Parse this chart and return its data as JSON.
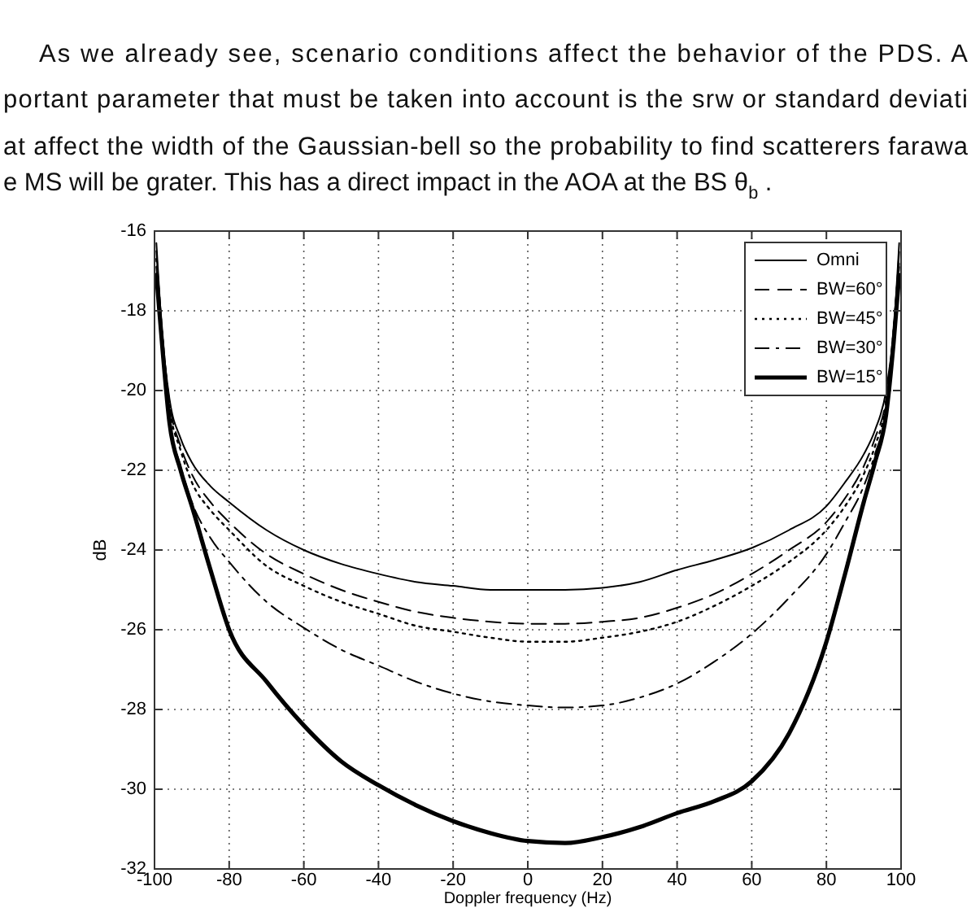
{
  "chart_data": {
    "type": "line",
    "xlabel": "Doppler frequency (Hz)",
    "ylabel": "dB",
    "annotations": [
      "As we already see, scenario conditions affect the behavior of the PDS. A",
      "portant parameter that must be taken into account is the srw or standard deviati",
      "at affect the width of the Gaussian-bell so the probability to find scatterers farawa",
      "e MS will be grater. This has a direct impact in the AOA at the BS θ$_{b}$ ."
    ],
    "x": [
      -99.5,
      -98,
      -96,
      -93,
      -90,
      -85,
      -80,
      -70,
      -60,
      -50,
      -40,
      -30,
      -20,
      -10,
      0,
      10,
      20,
      30,
      40,
      50,
      60,
      70,
      80,
      85,
      90,
      93,
      96,
      98,
      99.5
    ],
    "series": [
      {
        "name": "Omni",
        "color": "#000000",
        "line_style": "solid",
        "values": [
          -16.3,
          -18.5,
          -20.2,
          -21.2,
          -21.8,
          -22.4,
          -22.8,
          -23.5,
          -24.0,
          -24.35,
          -24.6,
          -24.8,
          -24.9,
          -25,
          -25,
          -25,
          -24.95,
          -24.8,
          -24.5,
          -24.25,
          -23.95,
          -23.5,
          -22.9,
          -22.3,
          -21.6,
          -21,
          -20,
          -18.5,
          -16.3
        ]
      },
      {
        "name": "BW=60°",
        "color": "#000000",
        "line_style": "dashed",
        "values": [
          -16.5,
          -18.5,
          -20.3,
          -21.4,
          -22.1,
          -22.8,
          -23.3,
          -24.1,
          -24.6,
          -25.0,
          -25.3,
          -25.55,
          -25.7,
          -25.8,
          -25.85,
          -25.85,
          -25.8,
          -25.7,
          -25.45,
          -25.1,
          -24.6,
          -24.0,
          -23.3,
          -22.7,
          -21.9,
          -21.2,
          -20.2,
          -18.5,
          -16.5
        ]
      },
      {
        "name": "BW=45°",
        "color": "#000000",
        "line_style": "dotted",
        "values": [
          -16.7,
          -18.5,
          -20.4,
          -21.5,
          -22.3,
          -23.0,
          -23.5,
          -24.4,
          -24.9,
          -25.3,
          -25.6,
          -25.9,
          -26.05,
          -26.2,
          -26.3,
          -26.3,
          -26.2,
          -26.05,
          -25.8,
          -25.4,
          -24.9,
          -24.3,
          -23.5,
          -22.9,
          -22.1,
          -21.4,
          -20.3,
          -18.5,
          -16.7
        ]
      },
      {
        "name": "BW=30°",
        "color": "#000000",
        "line_style": "dashdot",
        "values": [
          -16.9,
          -18.6,
          -20.7,
          -21.9,
          -22.8,
          -23.7,
          -24.3,
          -25.3,
          -25.95,
          -26.5,
          -26.9,
          -27.3,
          -27.6,
          -27.8,
          -27.9,
          -27.95,
          -27.9,
          -27.7,
          -27.35,
          -26.8,
          -26.1,
          -25.2,
          -24.1,
          -23.3,
          -22.4,
          -21.6,
          -20.5,
          -18.6,
          -16.9
        ]
      },
      {
        "name": "BW=15°",
        "color": "#000000",
        "line_style": "solid",
        "values": [
          -17.1,
          -18.8,
          -20.8,
          -22.0,
          -22.9,
          -24.5,
          -26.0,
          -27.3,
          -28.4,
          -29.3,
          -29.9,
          -30.4,
          -30.8,
          -31.1,
          -31.3,
          -31.35,
          -31.2,
          -30.95,
          -30.6,
          -30.3,
          -29.8,
          -28.6,
          -26.3,
          -24.6,
          -22.8,
          -21.8,
          -20.6,
          -18.8,
          -17.1
        ]
      }
    ],
    "xlim": [
      -100,
      100
    ],
    "xticks": [
      -100,
      -80,
      -60,
      -40,
      -20,
      0,
      20,
      40,
      60,
      80,
      100
    ],
    "ylim": [
      -32,
      -16
    ],
    "yticks": [
      -32,
      -30,
      -28,
      -26,
      -24,
      -22,
      -20,
      -18,
      -16
    ],
    "grid": true,
    "legend": "top right",
    "marker": "none"
  }
}
